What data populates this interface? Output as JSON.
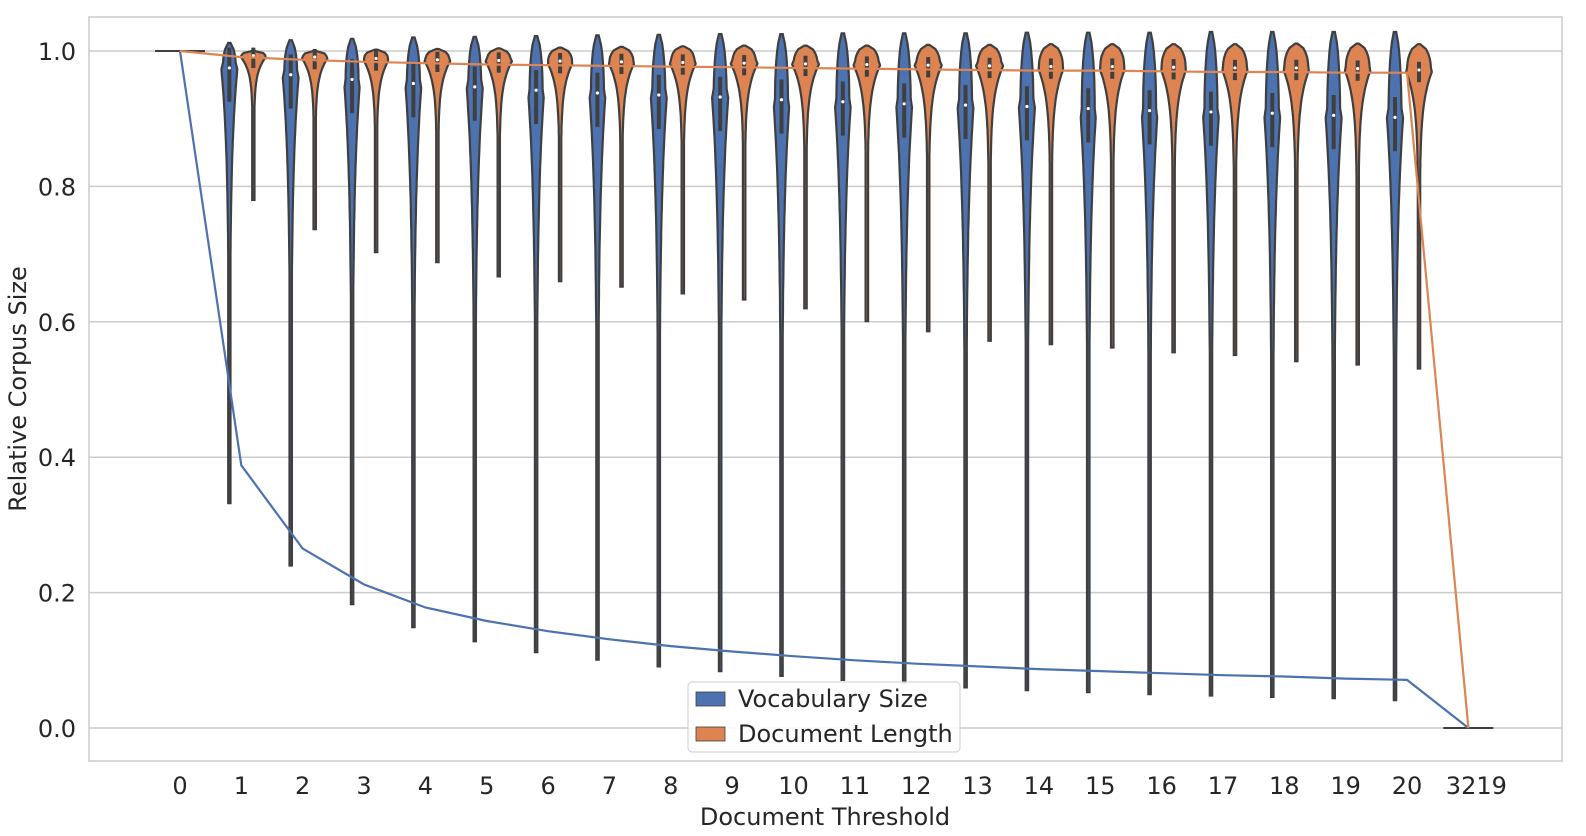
{
  "chart_data": {
    "type": "violin",
    "xlabel": "Document Threshold",
    "ylabel": "Relative Corpus Size",
    "categories": [
      "0",
      "1",
      "2",
      "3",
      "4",
      "5",
      "6",
      "7",
      "8",
      "9",
      "10",
      "11",
      "12",
      "13",
      "14",
      "15",
      "16",
      "17",
      "18",
      "19",
      "20",
      "3219"
    ],
    "ylim": [
      -0.05,
      1.05
    ],
    "yticks": [
      0.0,
      0.2,
      0.4,
      0.6,
      0.8,
      1.0
    ],
    "ytick_labels": [
      "0.0",
      "0.2",
      "0.4",
      "0.6",
      "0.8",
      "1.0"
    ],
    "grid": "horizontal",
    "legend": {
      "placement": "lower-center"
    },
    "colors": {
      "vocab": "#4c72b0",
      "doclen": "#dd8452",
      "violin_edge": "#3f3f3f"
    },
    "series": [
      {
        "name": "Vocabulary Size",
        "line_values": [
          1.0,
          0.388,
          0.265,
          0.212,
          0.178,
          0.158,
          0.143,
          0.131,
          0.121,
          0.113,
          0.106,
          0.1,
          0.095,
          0.091,
          0.087,
          0.084,
          0.081,
          0.078,
          0.076,
          0.073,
          0.071,
          0.0
        ],
        "violins": {
          "median": [
            null,
            0.975,
            0.965,
            0.958,
            0.952,
            0.947,
            0.942,
            0.938,
            0.935,
            0.932,
            0.928,
            0.925,
            0.922,
            0.92,
            0.918,
            0.915,
            0.912,
            0.91,
            0.908,
            0.905,
            0.902,
            null
          ],
          "min": [
            null,
            0.332,
            0.24,
            0.183,
            0.149,
            0.128,
            0.112,
            0.101,
            0.091,
            0.084,
            0.077,
            0.071,
            0.067,
            0.06,
            0.056,
            0.053,
            0.05,
            0.048,
            0.046,
            0.044,
            0.041,
            null
          ],
          "max": [
            null,
            1.012,
            1.016,
            1.018,
            1.02,
            1.021,
            1.022,
            1.023,
            1.024,
            1.025,
            1.025,
            1.026,
            1.026,
            1.026,
            1.027,
            1.027,
            1.027,
            1.028,
            1.028,
            1.028,
            1.028,
            null
          ]
        }
      },
      {
        "name": "Document Length",
        "line_values": [
          1.0,
          0.991,
          0.987,
          0.984,
          0.982,
          0.98,
          0.979,
          0.978,
          0.977,
          0.976,
          0.975,
          0.974,
          0.973,
          0.972,
          0.971,
          0.971,
          0.97,
          0.969,
          0.969,
          0.968,
          0.968,
          0.0
        ],
        "violins": {
          "median": [
            null,
            0.993,
            0.991,
            0.989,
            0.987,
            0.986,
            0.985,
            0.984,
            0.983,
            0.982,
            0.981,
            0.98,
            0.979,
            0.978,
            0.977,
            0.977,
            0.976,
            0.975,
            0.975,
            0.974,
            0.974,
            0.972
          ],
          "min": [
            null,
            0.78,
            0.737,
            0.703,
            0.688,
            0.667,
            0.66,
            0.652,
            0.642,
            0.633,
            0.62,
            0.601,
            0.586,
            0.572,
            0.567,
            0.562,
            0.555,
            0.551,
            0.542,
            0.537,
            null,
            0.531
          ],
          "max": [
            null,
            1.0,
            1.0,
            1.002,
            1.003,
            1.004,
            1.005,
            1.006,
            1.007,
            1.008,
            1.008,
            1.008,
            1.009,
            1.009,
            1.01,
            1.01,
            1.01,
            1.01,
            1.011,
            1.011,
            null,
            1.01
          ]
        }
      }
    ]
  }
}
